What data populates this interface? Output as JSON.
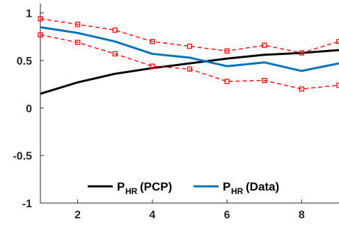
{
  "chart_data": {
    "type": "line",
    "title": "",
    "xlabel": "",
    "ylabel": "",
    "xlim": [
      1,
      9
    ],
    "ylim": [
      -1,
      1.1
    ],
    "xticks": [
      2,
      4,
      6,
      8
    ],
    "yticks": [
      -1,
      -0.5,
      0,
      0.5,
      1
    ],
    "xtick_labels": [
      "2",
      "4",
      "6",
      "8"
    ],
    "ytick_labels": [
      "-1",
      "-0.5",
      "0",
      "0.5",
      "1"
    ],
    "grid": false,
    "legend_position": "bottom-center",
    "x": [
      1,
      2,
      3,
      4,
      5,
      6,
      7,
      8,
      9
    ],
    "series": [
      {
        "key": "pcp",
        "name": "P_HR(PCP)",
        "legend_main": "P",
        "legend_sub": "HR",
        "legend_suffix": "(PCP)",
        "color": "#000000",
        "style": "solid",
        "in_legend": true,
        "values": [
          0.15,
          0.27,
          0.36,
          0.42,
          0.47,
          0.52,
          0.56,
          0.58,
          0.61
        ]
      },
      {
        "key": "data",
        "name": "P_HR(Data)",
        "legend_main": "P",
        "legend_sub": "HR",
        "legend_suffix": "(Data)",
        "color": "#0072BD",
        "style": "solid",
        "in_legend": true,
        "values": [
          0.85,
          0.79,
          0.7,
          0.57,
          0.53,
          0.44,
          0.48,
          0.39,
          0.47
        ]
      },
      {
        "key": "upper",
        "color": "#FF0000",
        "style": "dashed",
        "marker": "square",
        "in_legend": false,
        "values": [
          0.94,
          0.88,
          0.82,
          0.7,
          0.65,
          0.6,
          0.66,
          0.58,
          0.7
        ]
      },
      {
        "key": "lower",
        "color": "#FF0000",
        "style": "dashed",
        "marker": "square",
        "in_legend": false,
        "values": [
          0.77,
          0.69,
          0.57,
          0.44,
          0.41,
          0.28,
          0.29,
          0.2,
          0.24
        ]
      }
    ]
  }
}
